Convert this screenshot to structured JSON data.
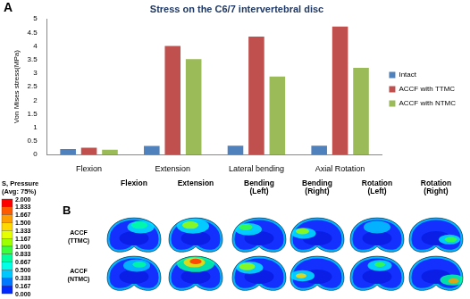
{
  "chart_data": {
    "type": "bar",
    "title": "Stress on the C6/7 intervertebral disc",
    "annotations": [
      "A"
    ],
    "y_label": "Von Mises stress(MPa)",
    "categories": [
      "Flexion",
      "Extension",
      "Lateral bending",
      "Axial Rotation"
    ],
    "series": [
      {
        "name": "Intact",
        "color": "#4f81bd",
        "values": [
          0.2,
          0.32,
          0.33,
          0.33
        ]
      },
      {
        "name": "ACCF with TTMC",
        "color": "#c0504d",
        "values": [
          0.25,
          4.0,
          4.35,
          4.72
        ]
      },
      {
        "name": "ACCF with NTMC",
        "color": "#9bbb59",
        "values": [
          0.18,
          3.52,
          2.88,
          3.2
        ]
      }
    ],
    "ylim": [
      0,
      5
    ],
    "yticks": [
      0,
      0.5,
      1,
      1.5,
      2,
      2.5,
      3,
      3.5,
      4,
      4.5,
      5
    ],
    "grid": false,
    "legend": "right"
  },
  "figure_b": {
    "label": "B",
    "columns": [
      "Flexion",
      "Extension",
      "Bending (Left)",
      "Bending (Right)",
      "Rotation (Left)",
      "Rotation (Right)"
    ],
    "rows": [
      "ACCF (TTMC)",
      "ACCF (NTMC)"
    ],
    "color_bar": {
      "title_lines": [
        "S, Pressure",
        "(Avg: 75%)"
      ],
      "range": [
        0,
        2
      ],
      "ticks": [
        {
          "value": 2,
          "label": "2.000"
        },
        {
          "value": 1.833,
          "label": "1.833"
        },
        {
          "value": 1.667,
          "label": "1.667"
        },
        {
          "value": 1.5,
          "label": "1.500"
        },
        {
          "value": 1.333,
          "label": "1.333"
        },
        {
          "value": 1.167,
          "label": "1.167"
        },
        {
          "value": 1,
          "label": "1.000"
        },
        {
          "value": 0.833,
          "label": "0.833"
        },
        {
          "value": 0.667,
          "label": "0.667"
        },
        {
          "value": 0.5,
          "label": "0.500"
        },
        {
          "value": 0.333,
          "label": "0.333"
        },
        {
          "value": 0.167,
          "label": "0.167"
        },
        {
          "value": 0,
          "label": "0.000"
        }
      ]
    }
  }
}
